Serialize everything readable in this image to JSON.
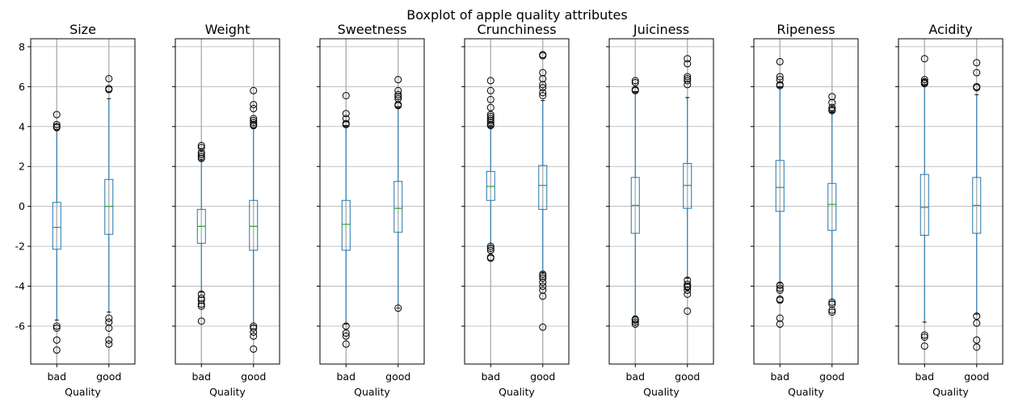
{
  "chart_data": {
    "type": "boxplot",
    "title": "Boxplot of apple quality attributes",
    "xlabel": "Quality",
    "categories": [
      "bad",
      "good"
    ],
    "ylim": [
      -7.9,
      8.4
    ],
    "yticks": [
      -6,
      -4,
      -2,
      0,
      2,
      4,
      6,
      8
    ],
    "grid": true,
    "colors": {
      "box": "#1f77b4",
      "median": "#2ca02c",
      "grid": "#b0b0b0",
      "flier": "#000000"
    },
    "panels": [
      {
        "name": "Size",
        "boxes": [
          {
            "category": "bad",
            "whisker_low": -5.7,
            "q1": -2.15,
            "median": -1.05,
            "q3": 0.2,
            "whisker_high": 3.8,
            "fliers": [
              4.6,
              4.1,
              4.0,
              3.95,
              -6.0,
              -6.1,
              -6.7,
              -7.2
            ]
          },
          {
            "category": "good",
            "whisker_low": -5.3,
            "q1": -1.4,
            "median": 0.0,
            "q3": 1.35,
            "whisker_high": 5.4,
            "fliers": [
              6.4,
              5.9,
              5.85,
              -5.6,
              -5.8,
              -6.1,
              -6.7,
              -6.9
            ]
          }
        ]
      },
      {
        "name": "Weight",
        "boxes": [
          {
            "category": "bad",
            "whisker_low": -4.3,
            "q1": -1.85,
            "median": -1.0,
            "q3": -0.15,
            "whisker_high": 2.3,
            "fliers": [
              3.05,
              2.95,
              2.7,
              2.6,
              2.5,
              2.4,
              -4.4,
              -4.6,
              -4.7,
              -4.9,
              -5.0,
              -5.75
            ]
          },
          {
            "category": "good",
            "whisker_low": -5.95,
            "q1": -2.2,
            "median": -1.0,
            "q3": 0.3,
            "whisker_high": 3.9,
            "fliers": [
              5.8,
              5.1,
              4.9,
              4.4,
              4.3,
              4.2,
              4.1,
              4.05,
              -6.0,
              -6.1,
              -6.3,
              -6.5,
              -7.15
            ]
          }
        ]
      },
      {
        "name": "Sweetness",
        "boxes": [
          {
            "category": "bad",
            "whisker_low": -5.9,
            "q1": -2.2,
            "median": -0.9,
            "q3": 0.3,
            "whisker_high": 4.05,
            "fliers": [
              5.55,
              4.65,
              4.4,
              4.15,
              4.1,
              -6.0,
              -6.35,
              -6.5,
              -6.9
            ]
          },
          {
            "category": "good",
            "whisker_low": -5.1,
            "q1": -1.3,
            "median": -0.1,
            "q3": 1.25,
            "whisker_high": 5.0,
            "fliers": [
              6.35,
              5.8,
              5.6,
              5.5,
              5.4,
              5.1,
              5.05,
              -5.1
            ]
          }
        ]
      },
      {
        "name": "Crunchiness",
        "boxes": [
          {
            "category": "bad",
            "whisker_low": -1.95,
            "q1": 0.3,
            "median": 1.0,
            "q3": 1.75,
            "whisker_high": 4.0,
            "fliers": [
              6.3,
              5.8,
              5.35,
              4.95,
              4.6,
              4.5,
              4.4,
              4.3,
              4.2,
              4.1,
              4.05,
              -2.0,
              -2.1,
              -2.2,
              -2.55,
              -2.6
            ]
          },
          {
            "category": "good",
            "whisker_low": -3.3,
            "q1": -0.15,
            "median": 1.05,
            "q3": 2.05,
            "whisker_high": 5.3,
            "fliers": [
              7.6,
              7.55,
              6.7,
              6.4,
              6.1,
              5.95,
              5.7,
              5.55,
              -3.4,
              -3.5,
              -3.6,
              -3.8,
              -4.0,
              -4.2,
              -4.5,
              -6.05
            ]
          }
        ]
      },
      {
        "name": "Juiciness",
        "boxes": [
          {
            "category": "bad",
            "whisker_low": -5.5,
            "q1": -1.35,
            "median": 0.05,
            "q3": 1.45,
            "whisker_high": 5.75,
            "fliers": [
              6.3,
              6.2,
              5.85,
              5.8,
              -5.65,
              -5.7,
              -5.8,
              -5.9
            ]
          },
          {
            "category": "good",
            "whisker_low": -3.6,
            "q1": -0.1,
            "median": 1.05,
            "q3": 2.15,
            "whisker_high": 5.45,
            "fliers": [
              7.4,
              7.15,
              6.5,
              6.4,
              6.3,
              6.1,
              -3.7,
              -3.9,
              -4.0,
              -4.05,
              -4.2,
              -4.4,
              -5.25
            ]
          }
        ]
      },
      {
        "name": "Ripeness",
        "boxes": [
          {
            "category": "bad",
            "whisker_low": -3.85,
            "q1": -0.25,
            "median": 0.95,
            "q3": 2.3,
            "whisker_high": 6.0,
            "fliers": [
              7.25,
              6.5,
              6.35,
              6.1,
              6.05,
              -3.95,
              -4.1,
              -4.2,
              -4.65,
              -4.7,
              -5.6,
              -5.9
            ]
          },
          {
            "category": "good",
            "whisker_low": -4.75,
            "q1": -1.2,
            "median": 0.1,
            "q3": 1.15,
            "whisker_high": 4.75,
            "fliers": [
              5.5,
              5.2,
              4.95,
              4.85,
              4.8,
              -4.8,
              -4.9,
              -5.2,
              -5.3
            ]
          }
        ]
      },
      {
        "name": "Acidity",
        "boxes": [
          {
            "category": "bad",
            "whisker_low": -5.8,
            "q1": -1.45,
            "median": -0.05,
            "q3": 1.6,
            "whisker_high": 6.1,
            "fliers": [
              7.4,
              6.35,
              6.25,
              6.2,
              6.15,
              -6.45,
              -6.55,
              -7.0
            ]
          },
          {
            "category": "good",
            "whisker_low": -5.4,
            "q1": -1.35,
            "median": 0.05,
            "q3": 1.45,
            "whisker_high": 5.6,
            "fliers": [
              7.2,
              6.7,
              6.0,
              5.95,
              -5.5,
              -5.85,
              -6.7,
              -7.05
            ]
          }
        ]
      }
    ]
  }
}
